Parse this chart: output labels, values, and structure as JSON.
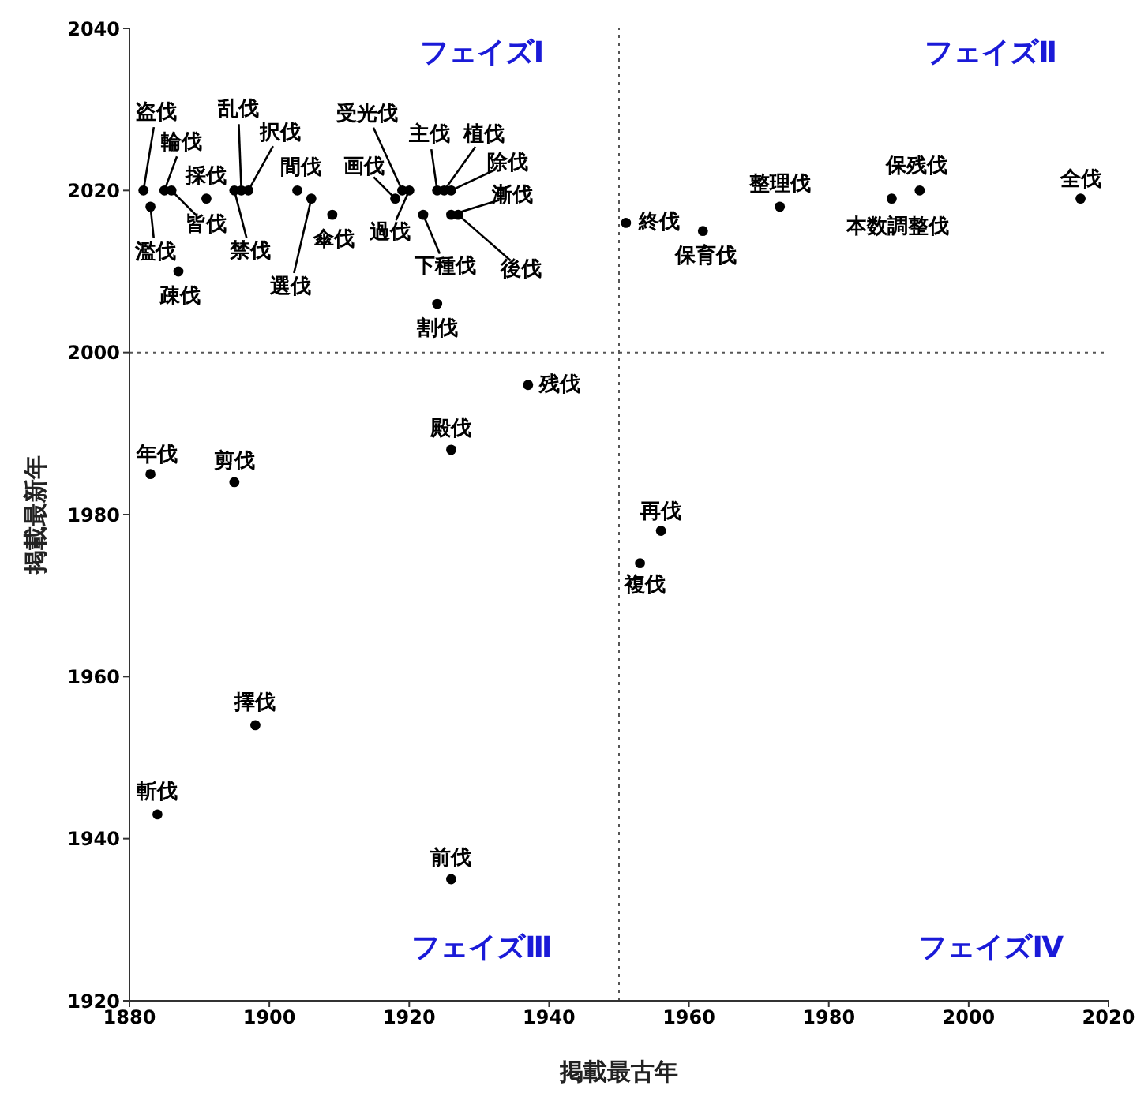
{
  "chart_data": {
    "type": "scatter",
    "xlabel": "掲載最古年",
    "ylabel": "掲載最新年",
    "xlim": [
      1880,
      2020
    ],
    "xticks": [
      1880,
      1900,
      1920,
      1940,
      1960,
      1980,
      2000,
      2020
    ],
    "ylim": [
      1920,
      2040
    ],
    "yticks": [
      1920,
      1940,
      1960,
      1980,
      2000,
      2020,
      2040
    ],
    "marker": "circle",
    "ref_lines": [
      {
        "axis": "x",
        "value": 1950,
        "line_style": "dotted",
        "color": "#555555"
      },
      {
        "axis": "y",
        "value": 2000,
        "line_style": "dotted",
        "color": "#555555"
      }
    ],
    "annotations": [
      "フェイズⅠ",
      "フェイズⅡ",
      "フェイズⅢ",
      "フェイズⅣ"
    ],
    "series": [
      {
        "color": "#000000",
        "x": [
          1882,
          1883,
          1885,
          1886,
          1891,
          1887,
          1896,
          1895,
          1897,
          1904,
          1906,
          1909,
          1918,
          1919,
          1920,
          1922,
          1924,
          1925,
          1926,
          1926,
          1927,
          1924,
          1951,
          1962,
          1973,
          1989,
          1993,
          2016,
          1937,
          1926,
          1883,
          1895,
          1956,
          1953,
          1898,
          1884,
          1926
        ],
        "values": [
          2020,
          2018,
          2020,
          2020,
          2019,
          2010,
          2020,
          2020,
          2020,
          2020,
          2019,
          2017,
          2019,
          2020,
          2020,
          2017,
          2020,
          2020,
          2020,
          2017,
          2017,
          2006,
          2016,
          2015,
          2018,
          2019,
          2020,
          2019,
          1996,
          1988,
          1985,
          1984,
          1978,
          1974,
          1954,
          1943,
          1935
        ],
        "value_labels": [
          "盗伐",
          "濫伐",
          "輪伐",
          "皆伐",
          "採伐",
          "疎伐",
          "乱伐",
          "禁伐",
          "択伐",
          "間伐",
          "選伐",
          "傘伐",
          "画伐",
          "受光伐",
          "過伐",
          "下種伐",
          "主伐",
          "植伐",
          "除伐",
          "漸伐",
          "後伐",
          "割伐",
          "終伐",
          "保育伐",
          "整理伐",
          "本数調整伐",
          "保残伐",
          "全伐",
          "残伐",
          "殿伐",
          "年伐",
          "剪伐",
          "再伐",
          "複伐",
          "擇伐",
          "斬伐",
          "前伐"
        ]
      }
    ]
  }
}
